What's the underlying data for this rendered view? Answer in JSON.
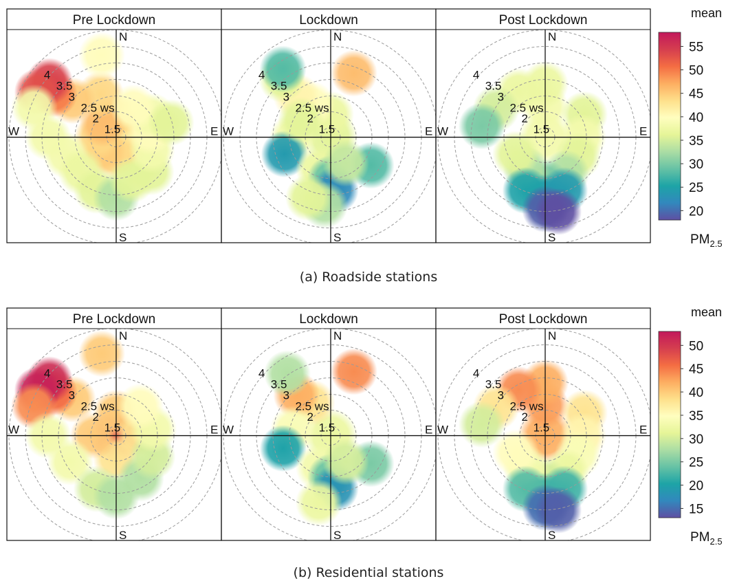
{
  "figure": {
    "panel_a_caption": "(a)   Roadside stations",
    "panel_b_caption": "(b)   Residential stations"
  },
  "chart_data": [
    {
      "type": "heatmap",
      "subtype": "polar-plot",
      "panels": [
        "Pre Lockdown",
        "Lockdown",
        "Post Lockdown"
      ],
      "radial_axis": {
        "label": "ws",
        "ticks": [
          "1.5",
          "2",
          "2.5",
          "3",
          "3.5",
          "4"
        ]
      },
      "directions": [
        "N",
        "E",
        "S",
        "W"
      ],
      "legend": {
        "title": "mean",
        "unit": "PM2.5",
        "ticks": [
          20,
          25,
          30,
          35,
          40,
          45,
          50,
          55
        ],
        "range": [
          18,
          58
        ],
        "placement": "right"
      },
      "colormap": [
        "#5e4fa2",
        "#3288bd",
        "#1da4a6",
        "#66c2a5",
        "#abdda4",
        "#e6f598",
        "#fffebf",
        "#fee08b",
        "#fdae61",
        "#f46d43",
        "#d53e4f",
        "#c2185b"
      ],
      "blobs": [
        [
          {
            "angle": 0,
            "radius": 0,
            "value": 57
          },
          {
            "angle": 0,
            "radius": 0.5,
            "value": 46
          },
          {
            "angle": 45,
            "radius": 0.5,
            "value": 44
          },
          {
            "angle": 90,
            "radius": 0.5,
            "value": 44
          },
          {
            "angle": 135,
            "radius": 0.5,
            "value": 42
          },
          {
            "angle": 180,
            "radius": 0.5,
            "value": 44
          },
          {
            "angle": 225,
            "radius": 0.5,
            "value": 45
          },
          {
            "angle": 270,
            "radius": 0.5,
            "value": 44
          },
          {
            "angle": 315,
            "radius": 0.5,
            "value": 46
          },
          {
            "angle": 340,
            "radius": 1.2,
            "value": 44
          },
          {
            "angle": 310,
            "radius": 1.5,
            "value": 45
          },
          {
            "angle": 305,
            "radius": 2.0,
            "value": 50
          },
          {
            "angle": 310,
            "radius": 2.3,
            "value": 54
          },
          {
            "angle": 300,
            "radius": 2.4,
            "value": 53
          },
          {
            "angle": 290,
            "radius": 2.3,
            "value": 38
          },
          {
            "angle": 270,
            "radius": 1.8,
            "value": 38
          },
          {
            "angle": 250,
            "radius": 1.4,
            "value": 38
          },
          {
            "angle": 225,
            "radius": 1.3,
            "value": 37
          },
          {
            "angle": 200,
            "radius": 1.5,
            "value": 36
          },
          {
            "angle": 180,
            "radius": 1.6,
            "value": 33
          },
          {
            "angle": 160,
            "radius": 1.2,
            "value": 36
          },
          {
            "angle": 135,
            "radius": 1.3,
            "value": 36
          },
          {
            "angle": 110,
            "radius": 1.0,
            "value": 38
          },
          {
            "angle": 80,
            "radius": 0.9,
            "value": 40
          },
          {
            "angle": 60,
            "radius": 1.1,
            "value": 38
          },
          {
            "angle": 30,
            "radius": 0.9,
            "value": 40
          },
          {
            "angle": 350,
            "radius": 2.2,
            "value": 40
          },
          {
            "angle": 75,
            "radius": 1.5,
            "value": 36
          }
        ],
        [
          {
            "angle": 0,
            "radius": 0,
            "value": 36
          },
          {
            "angle": 0,
            "radius": 0.6,
            "value": 37
          },
          {
            "angle": 330,
            "radius": 1.0,
            "value": 40
          },
          {
            "angle": 320,
            "radius": 1.4,
            "value": 41
          },
          {
            "angle": 320,
            "radius": 2.0,
            "value": 36
          },
          {
            "angle": 325,
            "radius": 2.2,
            "value": 28
          },
          {
            "angle": 20,
            "radius": 1.8,
            "value": 46
          },
          {
            "angle": 270,
            "radius": 1.0,
            "value": 38
          },
          {
            "angle": 250,
            "radius": 1.3,
            "value": 24
          },
          {
            "angle": 200,
            "radius": 0.9,
            "value": 37
          },
          {
            "angle": 180,
            "radius": 1.1,
            "value": 29
          },
          {
            "angle": 175,
            "radius": 1.4,
            "value": 22
          },
          {
            "angle": 185,
            "radius": 1.8,
            "value": 33
          },
          {
            "angle": 200,
            "radius": 1.7,
            "value": 36
          },
          {
            "angle": 125,
            "radius": 1.3,
            "value": 28
          },
          {
            "angle": 150,
            "radius": 0.8,
            "value": 34
          },
          {
            "angle": 300,
            "radius": 0.9,
            "value": 36
          }
        ],
        [
          {
            "angle": 0,
            "radius": 0,
            "value": 38
          },
          {
            "angle": 0,
            "radius": 0.8,
            "value": 38
          },
          {
            "angle": 0,
            "radius": 1.4,
            "value": 37
          },
          {
            "angle": 330,
            "radius": 1.4,
            "value": 37
          },
          {
            "angle": 300,
            "radius": 1.5,
            "value": 35
          },
          {
            "angle": 280,
            "radius": 1.7,
            "value": 30
          },
          {
            "angle": 60,
            "radius": 1.2,
            "value": 36
          },
          {
            "angle": 90,
            "radius": 1.0,
            "value": 38
          },
          {
            "angle": 120,
            "radius": 1.0,
            "value": 36
          },
          {
            "angle": 150,
            "radius": 1.1,
            "value": 33
          },
          {
            "angle": 180,
            "radius": 1.2,
            "value": 30
          },
          {
            "angle": 210,
            "radius": 1.0,
            "value": 33
          },
          {
            "angle": 240,
            "radius": 0.9,
            "value": 36
          },
          {
            "angle": 180,
            "radius": 1.6,
            "value": 24
          },
          {
            "angle": 200,
            "radius": 1.5,
            "value": 25
          },
          {
            "angle": 160,
            "radius": 1.5,
            "value": 24
          },
          {
            "angle": 180,
            "radius": 1.9,
            "value": 19
          },
          {
            "angle": 170,
            "radius": 2.0,
            "value": 18
          }
        ]
      ]
    },
    {
      "type": "heatmap",
      "subtype": "polar-plot",
      "panels": [
        "Pre Lockdown",
        "Lockdown",
        "Post Lockdown"
      ],
      "radial_axis": {
        "label": "ws",
        "ticks": [
          "1.5",
          "2",
          "2.5",
          "3",
          "3.5",
          "4"
        ]
      },
      "directions": [
        "N",
        "E",
        "S",
        "W"
      ],
      "legend": {
        "title": "mean",
        "unit": "PM2.5",
        "ticks": [
          15,
          20,
          25,
          30,
          35,
          40,
          45,
          50
        ],
        "range": [
          13,
          53
        ],
        "placement": "right"
      },
      "colormap": [
        "#5e4fa2",
        "#3288bd",
        "#1da4a6",
        "#66c2a5",
        "#abdda4",
        "#e6f598",
        "#fffebf",
        "#fee08b",
        "#fdae61",
        "#f46d43",
        "#d53e4f",
        "#c2185b"
      ],
      "blobs": [
        [
          {
            "angle": 0,
            "radius": 0,
            "value": 48
          },
          {
            "angle": 0,
            "radius": 0.6,
            "value": 40
          },
          {
            "angle": 90,
            "radius": 0.6,
            "value": 38
          },
          {
            "angle": 180,
            "radius": 0.6,
            "value": 38
          },
          {
            "angle": 270,
            "radius": 0.6,
            "value": 40
          },
          {
            "angle": 310,
            "radius": 1.5,
            "value": 40
          },
          {
            "angle": 305,
            "radius": 2.0,
            "value": 46
          },
          {
            "angle": 310,
            "radius": 2.3,
            "value": 51
          },
          {
            "angle": 300,
            "radius": 2.4,
            "value": 52
          },
          {
            "angle": 290,
            "radius": 2.3,
            "value": 44
          },
          {
            "angle": 270,
            "radius": 1.8,
            "value": 33
          },
          {
            "angle": 240,
            "radius": 1.4,
            "value": 33
          },
          {
            "angle": 200,
            "radius": 1.5,
            "value": 30
          },
          {
            "angle": 180,
            "radius": 1.6,
            "value": 28
          },
          {
            "angle": 150,
            "radius": 1.3,
            "value": 28
          },
          {
            "angle": 120,
            "radius": 1.1,
            "value": 30
          },
          {
            "angle": 80,
            "radius": 1.0,
            "value": 33
          },
          {
            "angle": 40,
            "radius": 1.0,
            "value": 35
          },
          {
            "angle": 350,
            "radius": 2.2,
            "value": 40
          }
        ],
        [
          {
            "angle": 0,
            "radius": 0,
            "value": 32
          },
          {
            "angle": 330,
            "radius": 1.0,
            "value": 38
          },
          {
            "angle": 320,
            "radius": 1.4,
            "value": 42
          },
          {
            "angle": 325,
            "radius": 2.0,
            "value": 28
          },
          {
            "angle": 20,
            "radius": 1.8,
            "value": 44
          },
          {
            "angle": 280,
            "radius": 1.0,
            "value": 34
          },
          {
            "angle": 255,
            "radius": 1.3,
            "value": 20
          },
          {
            "angle": 200,
            "radius": 0.9,
            "value": 33
          },
          {
            "angle": 180,
            "radius": 1.1,
            "value": 24
          },
          {
            "angle": 175,
            "radius": 1.4,
            "value": 18
          },
          {
            "angle": 190,
            "radius": 1.8,
            "value": 32
          },
          {
            "angle": 125,
            "radius": 1.3,
            "value": 25
          },
          {
            "angle": 150,
            "radius": 0.8,
            "value": 30
          }
        ],
        [
          {
            "angle": 0,
            "radius": 0,
            "value": 42
          },
          {
            "angle": 0,
            "radius": 0.8,
            "value": 43
          },
          {
            "angle": 0,
            "radius": 1.4,
            "value": 42
          },
          {
            "angle": 330,
            "radius": 1.4,
            "value": 44
          },
          {
            "angle": 300,
            "radius": 1.5,
            "value": 38
          },
          {
            "angle": 280,
            "radius": 1.7,
            "value": 30
          },
          {
            "angle": 60,
            "radius": 1.2,
            "value": 38
          },
          {
            "angle": 90,
            "radius": 1.0,
            "value": 36
          },
          {
            "angle": 120,
            "radius": 1.0,
            "value": 34
          },
          {
            "angle": 150,
            "radius": 1.1,
            "value": 32
          },
          {
            "angle": 180,
            "radius": 1.2,
            "value": 30
          },
          {
            "angle": 210,
            "radius": 1.0,
            "value": 33
          },
          {
            "angle": 240,
            "radius": 0.9,
            "value": 35
          },
          {
            "angle": 180,
            "radius": 1.6,
            "value": 22
          },
          {
            "angle": 200,
            "radius": 1.5,
            "value": 23
          },
          {
            "angle": 160,
            "radius": 1.5,
            "value": 22
          },
          {
            "angle": 180,
            "radius": 1.9,
            "value": 15
          },
          {
            "angle": 170,
            "radius": 2.0,
            "value": 14
          }
        ]
      ]
    }
  ]
}
